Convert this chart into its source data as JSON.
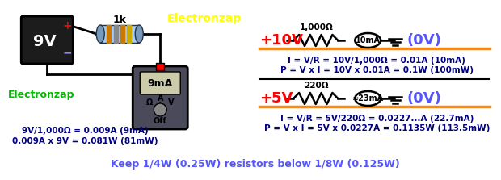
{
  "bg_color": "#ffffff",
  "electronzap_top": "Electronzap",
  "electronzap_left": "Electronzap",
  "res1_label": "1,000Ω",
  "res1_short": "1k",
  "res2_label": "220Ω",
  "v1_text": "+10V",
  "v2_text": "+5V",
  "ov_text": "(0V)",
  "i1_text": "10mA",
  "i2_text": "≈23mA",
  "calc1_line1": "I = V/R = 10V/1,000Ω = 0.01A (10mA)",
  "calc1_line2": "P = V x I = 10V x 0.01A = 0.1W (100mW)",
  "calc2_line1": "I = V/R = 5V/220Ω = 0.0227...A (22.7mA)",
  "calc2_line2": "P = V x I = 5V x 0.0227A = 0.1135W (113.5mW)",
  "left_calc1": "9V/1,000Ω = 0.009A (9mA)",
  "left_calc2": "0.009A x 9V = 0.081W (81mW)",
  "bottom_note": "Keep 1/4W (0.25W) resistors below 1/8W (0.125W)",
  "color_red": "#ff0000",
  "color_blue": "#5555ff",
  "color_yellow": "#ffff00",
  "color_green": "#00bb00",
  "color_orange": "#ff8800",
  "color_dark": "#000080",
  "color_black": "#000000",
  "color_white": "#ffffff"
}
